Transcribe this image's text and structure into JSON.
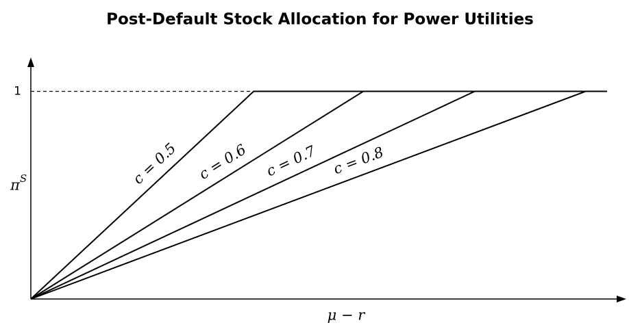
{
  "chart_data": {
    "type": "line",
    "title": "Post-Default Stock Allocation for Power Utilities",
    "x_label": "μ − r",
    "y_label": "π",
    "y_label_superscript": "S",
    "xlim": [
      0,
      1
    ],
    "ylim": [
      0,
      1.15
    ],
    "yticks": [
      1
    ],
    "series": [
      {
        "name": "c = 0.5",
        "color": "#000000",
        "x": [
          0,
          0.376,
          0.972
        ],
        "values": [
          0,
          1,
          1
        ]
      },
      {
        "name": "c = 0.6",
        "color": "#000000",
        "x": [
          0,
          0.561,
          0.972
        ],
        "values": [
          0,
          1,
          1
        ]
      },
      {
        "name": "c = 0.7",
        "color": "#000000",
        "x": [
          0,
          0.749,
          0.972
        ],
        "values": [
          0,
          1,
          1
        ]
      },
      {
        "name": "c = 0.8",
        "color": "#000000",
        "x": [
          0,
          0.936,
          0.972
        ],
        "values": [
          0,
          1,
          1
        ]
      }
    ]
  }
}
